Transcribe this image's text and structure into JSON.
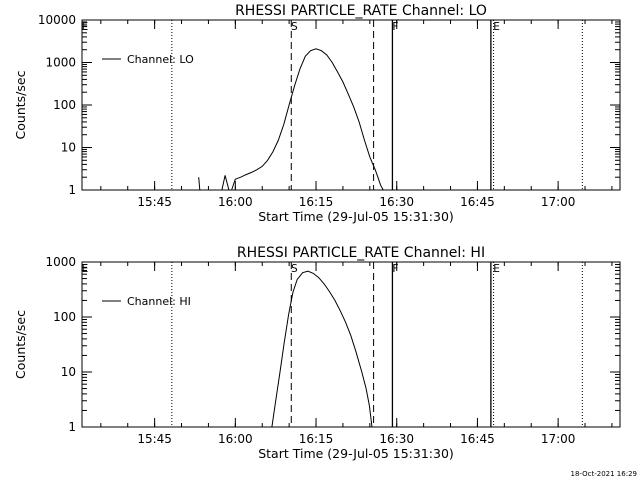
{
  "footer": {
    "timestamp": "18-Oct-2021 16:29"
  },
  "chart_data": [
    {
      "type": "line",
      "title": "RHESSI PARTICLE_RATE Channel: LO",
      "xlabel": "Start Time (29-Jul-05 15:31:30)",
      "ylabel": "Counts/sec",
      "x_unit": "minutes from 15:31:30",
      "xlim": [
        0,
        100
      ],
      "ylim": [
        1,
        10000
      ],
      "yscale": "log",
      "x_ticks": [
        {
          "label": "15:45",
          "value": 13.5
        },
        {
          "label": "16:00",
          "value": 28.5
        },
        {
          "label": "16:15",
          "value": 43.5
        },
        {
          "label": "16:30",
          "value": 58.5
        },
        {
          "label": "16:45",
          "value": 73.5
        },
        {
          "label": "17:00",
          "value": 88.5
        }
      ],
      "y_ticks": [
        {
          "label": "1",
          "value": 1
        },
        {
          "label": "10",
          "value": 10
        },
        {
          "label": "100",
          "value": 100
        },
        {
          "label": "1000",
          "value": 1000
        },
        {
          "label": "10000",
          "value": 10000
        }
      ],
      "legend": {
        "position": "top-left",
        "entries": [
          "Channel: LO"
        ]
      },
      "markers": [
        {
          "label": "E",
          "x": 0,
          "style": "dotted"
        },
        {
          "label": "S",
          "x": 38.9,
          "style": "dashed"
        },
        {
          "label": "",
          "x": 54.2,
          "style": "dashed"
        },
        {
          "label": "F",
          "x": 57.7,
          "style": "solid"
        },
        {
          "label": "",
          "x": 16.7,
          "style": "dotted"
        },
        {
          "label": "",
          "x": 76.0,
          "style": "solid"
        },
        {
          "label": "E",
          "x": 76.5,
          "style": "dotted"
        },
        {
          "label": "",
          "x": 93.0,
          "style": "dotted"
        }
      ],
      "series": [
        {
          "name": "Channel: LO",
          "segments": [
            [
              [
                21.7,
                2.0
              ],
              [
                21.9,
                1.0
              ]
            ],
            [
              [
                26.0,
                1.0
              ],
              [
                26.6,
                2.2
              ],
              [
                27.3,
                1.0
              ]
            ],
            [
              [
                27.8,
                1.0
              ],
              [
                28.5,
                1.8
              ],
              [
                29.5,
                2.0
              ],
              [
                30.5,
                2.3
              ],
              [
                31.5,
                2.6
              ],
              [
                32.5,
                3.0
              ],
              [
                33.5,
                3.6
              ],
              [
                34.5,
                5.0
              ],
              [
                35.5,
                8.0
              ],
              [
                36.5,
                15
              ],
              [
                37.5,
                35
              ],
              [
                38.5,
                100
              ],
              [
                39.5,
                280
              ],
              [
                40.5,
                700
              ],
              [
                41.5,
                1400
              ],
              [
                42.5,
                1900
              ],
              [
                43.5,
                2100
              ],
              [
                44.5,
                1900
              ],
              [
                45.5,
                1500
              ],
              [
                46.5,
                1000
              ],
              [
                47.5,
                600
              ],
              [
                48.5,
                350
              ],
              [
                49.5,
                180
              ],
              [
                50.5,
                90
              ],
              [
                51.5,
                40
              ],
              [
                52.5,
                15
              ],
              [
                53.5,
                6
              ],
              [
                54.5,
                3
              ],
              [
                55.0,
                2
              ],
              [
                55.5,
                1.3
              ],
              [
                56.0,
                1.0
              ]
            ]
          ]
        }
      ]
    },
    {
      "type": "line",
      "title": "RHESSI PARTICLE_RATE Channel: HI",
      "xlabel": "Start Time (29-Jul-05 15:31:30)",
      "ylabel": "Counts/sec",
      "x_unit": "minutes from 15:31:30",
      "xlim": [
        0,
        100
      ],
      "ylim": [
        1,
        1000
      ],
      "yscale": "log",
      "x_ticks": [
        {
          "label": "15:45",
          "value": 13.5
        },
        {
          "label": "16:00",
          "value": 28.5
        },
        {
          "label": "16:15",
          "value": 43.5
        },
        {
          "label": "16:30",
          "value": 58.5
        },
        {
          "label": "16:45",
          "value": 73.5
        },
        {
          "label": "17:00",
          "value": 88.5
        }
      ],
      "y_ticks": [
        {
          "label": "1",
          "value": 1
        },
        {
          "label": "10",
          "value": 10
        },
        {
          "label": "100",
          "value": 100
        },
        {
          "label": "1000",
          "value": 1000
        }
      ],
      "legend": {
        "position": "top-left",
        "entries": [
          "Channel: HI"
        ]
      },
      "markers": [
        {
          "label": "E",
          "x": 0,
          "style": "dotted"
        },
        {
          "label": "S",
          "x": 38.9,
          "style": "dashed"
        },
        {
          "label": "",
          "x": 54.2,
          "style": "dashed"
        },
        {
          "label": "F",
          "x": 57.7,
          "style": "solid"
        },
        {
          "label": "",
          "x": 16.7,
          "style": "dotted"
        },
        {
          "label": "",
          "x": 76.0,
          "style": "solid"
        },
        {
          "label": "E",
          "x": 76.5,
          "style": "dotted"
        },
        {
          "label": "",
          "x": 93.0,
          "style": "dotted"
        }
      ],
      "series": [
        {
          "name": "Channel: HI",
          "segments": [
            [
              [
                35.3,
                1.0
              ],
              [
                36.0,
                3.0
              ],
              [
                36.8,
                10
              ],
              [
                37.6,
                35
              ],
              [
                38.4,
                110
              ],
              [
                39.2,
                280
              ],
              [
                40.0,
                480
              ],
              [
                41.0,
                640
              ],
              [
                42.0,
                680
              ],
              [
                43.0,
                620
              ],
              [
                44.0,
                520
              ],
              [
                45.0,
                400
              ],
              [
                46.0,
                290
              ],
              [
                47.0,
                200
              ],
              [
                48.0,
                130
              ],
              [
                49.0,
                80
              ],
              [
                50.0,
                45
              ],
              [
                51.0,
                22
              ],
              [
                52.0,
                10
              ],
              [
                52.8,
                5
              ],
              [
                53.4,
                2.5
              ],
              [
                53.9,
                1.0
              ]
            ]
          ]
        }
      ]
    }
  ]
}
